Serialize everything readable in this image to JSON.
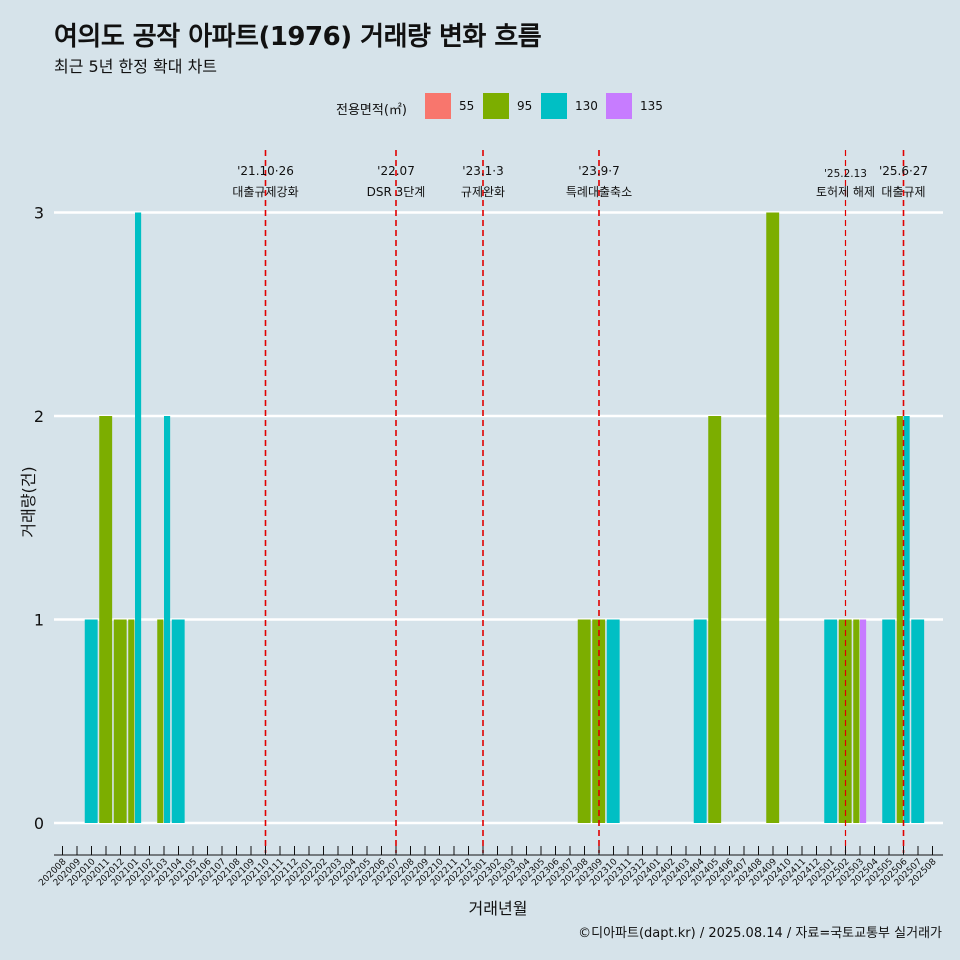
{
  "title": "여의도 공작 아파트(1976) 거래량 변화 흐름",
  "subtitle": "최근 5년 한정 확대 차트",
  "caption": "©디아파트(dapt.kr) / 2025.08.14 / 자료=국토교통부 실거래가",
  "legend": {
    "title": "전용면적(㎡)",
    "items": [
      {
        "label": "55",
        "color": "#F8766D"
      },
      {
        "label": "95",
        "color": "#7CAE00"
      },
      {
        "label": "130",
        "color": "#00BFC4"
      },
      {
        "label": "135",
        "color": "#C77CFF"
      }
    ]
  },
  "chart_data": {
    "type": "bar",
    "xlabel": "거래년월",
    "ylabel": "거래량(건)",
    "ylim": [
      0,
      3
    ],
    "yticks": [
      0,
      1,
      2,
      3
    ],
    "categories": [
      "202008",
      "202009",
      "202010",
      "202011",
      "202012",
      "202101",
      "202102",
      "202103",
      "202104",
      "202105",
      "202106",
      "202107",
      "202108",
      "202109",
      "202110",
      "202111",
      "202112",
      "202201",
      "202202",
      "202203",
      "202204",
      "202205",
      "202206",
      "202207",
      "202208",
      "202209",
      "202210",
      "202211",
      "202212",
      "202301",
      "202302",
      "202303",
      "202304",
      "202305",
      "202306",
      "202307",
      "202308",
      "202309",
      "202310",
      "202311",
      "202312",
      "202401",
      "202402",
      "202403",
      "202404",
      "202405",
      "202406",
      "202407",
      "202408",
      "202409",
      "202410",
      "202411",
      "202412",
      "202501",
      "202502",
      "202503",
      "202504",
      "202505",
      "202506",
      "202507",
      "202508"
    ],
    "bars": [
      {
        "month": "202010",
        "area": "130",
        "value": 1
      },
      {
        "month": "202011",
        "area": "95",
        "value": 2
      },
      {
        "month": "202012",
        "area": "95",
        "value": 1
      },
      {
        "month": "202101",
        "area": "95",
        "value": 1
      },
      {
        "month": "202101",
        "area": "130",
        "value": 3
      },
      {
        "month": "202103",
        "area": "95",
        "value": 1
      },
      {
        "month": "202103",
        "area": "130",
        "value": 2
      },
      {
        "month": "202104",
        "area": "130",
        "value": 1
      },
      {
        "month": "202308",
        "area": "95",
        "value": 1
      },
      {
        "month": "202309",
        "area": "95",
        "value": 1
      },
      {
        "month": "202310",
        "area": "130",
        "value": 1
      },
      {
        "month": "202404",
        "area": "130",
        "value": 1
      },
      {
        "month": "202405",
        "area": "95",
        "value": 2
      },
      {
        "month": "202409",
        "area": "95",
        "value": 3
      },
      {
        "month": "202501",
        "area": "130",
        "value": 1
      },
      {
        "month": "202502",
        "area": "95",
        "value": 1
      },
      {
        "month": "202503",
        "area": "95",
        "value": 1
      },
      {
        "month": "202503",
        "area": "135",
        "value": 1
      },
      {
        "month": "202505",
        "area": "130",
        "value": 1
      },
      {
        "month": "202506",
        "area": "95",
        "value": 2
      },
      {
        "month": "202506",
        "area": "130",
        "value": 2
      },
      {
        "month": "202507",
        "area": "130",
        "value": 1
      }
    ],
    "events": [
      {
        "month": "202110",
        "date": "'21.10·26",
        "label": "대출규제강화"
      },
      {
        "month": "202207",
        "date": "'22.07",
        "label": "DSR 3단계"
      },
      {
        "month": "202301",
        "date": "'23.1·3",
        "label": "규제완화"
      },
      {
        "month": "202309",
        "date": "'23.9·7",
        "label": "특례대출축소"
      },
      {
        "month": "202502",
        "date": "'25.2.13",
        "label": "토허제 해제"
      },
      {
        "month": "202506",
        "date": "'25.6·27",
        "label": "대출규제"
      }
    ],
    "grid": true,
    "legend_position": "top"
  }
}
